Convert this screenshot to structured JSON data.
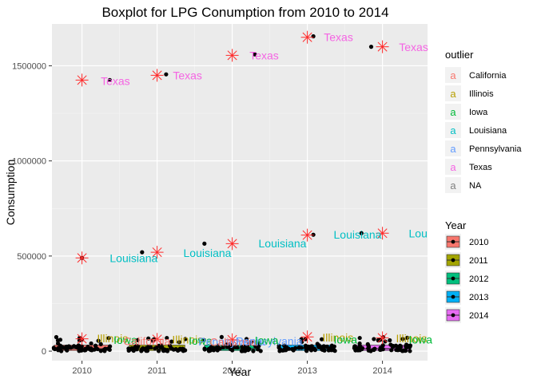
{
  "chart_data": {
    "type": "scatter",
    "title": "Boxplot for LPG Conumption from 2010 to 2014",
    "xlabel": "Year",
    "ylabel": "Consumption",
    "xlim": [
      2009.6,
      2014.6
    ],
    "ylim": [
      -50000,
      1720000
    ],
    "x_ticks": [
      2010,
      2011,
      2012,
      2013,
      2014
    ],
    "y_ticks": [
      0,
      500000,
      1000000,
      1500000
    ],
    "y_tick_labels": [
      "0",
      "500000",
      "1000000",
      "1500000"
    ],
    "grid": true,
    "outlier_legend": {
      "title": "outlier",
      "entries": [
        {
          "name": "California",
          "color": "#F8766D"
        },
        {
          "name": "Illinois",
          "color": "#B79F00"
        },
        {
          "name": "Iowa",
          "color": "#00BA38"
        },
        {
          "name": "Louisiana",
          "color": "#00BFC4"
        },
        {
          "name": "Pennsylvania",
          "color": "#619CFF"
        },
        {
          "name": "Texas",
          "color": "#F564E3"
        },
        {
          "name": "NA",
          "color": "#7F7F7F"
        }
      ]
    },
    "year_legend": {
      "title": "Year",
      "entries": [
        {
          "name": "2010",
          "color": "#F8766D"
        },
        {
          "name": "2011",
          "color": "#A3A500"
        },
        {
          "name": "2012",
          "color": "#00BF7D"
        },
        {
          "name": "2013",
          "color": "#00B0F6"
        },
        {
          "name": "2014",
          "color": "#E76BF3"
        }
      ]
    },
    "outlier_marks": [
      {
        "x": 2010,
        "y": 1425000
      },
      {
        "x": 2010,
        "y": 490000
      },
      {
        "x": 2010,
        "y": 65000
      },
      {
        "x": 2011,
        "y": 1450000
      },
      {
        "x": 2011,
        "y": 520000
      },
      {
        "x": 2011,
        "y": 62000
      },
      {
        "x": 2012,
        "y": 1555000
      },
      {
        "x": 2012,
        "y": 565000
      },
      {
        "x": 2012,
        "y": 60000
      },
      {
        "x": 2013,
        "y": 1650000
      },
      {
        "x": 2013,
        "y": 610000
      },
      {
        "x": 2013,
        "y": 75000
      },
      {
        "x": 2014,
        "y": 1600000
      },
      {
        "x": 2014,
        "y": 620000
      },
      {
        "x": 2014,
        "y": 70000
      }
    ],
    "high_points": [
      {
        "x": 2010.0,
        "y": 490000
      },
      {
        "x": 2010.37,
        "y": 1425000
      },
      {
        "x": 2010.8,
        "y": 520000
      },
      {
        "x": 2011.12,
        "y": 1455000
      },
      {
        "x": 2011.63,
        "y": 565000
      },
      {
        "x": 2012.3,
        "y": 1560000
      },
      {
        "x": 2013.08,
        "y": 612000
      },
      {
        "x": 2013.08,
        "y": 1655000
      },
      {
        "x": 2013.72,
        "y": 620000
      },
      {
        "x": 2013.85,
        "y": 1600000
      }
    ],
    "annotations": [
      {
        "text": "Texas",
        "x": 2010.25,
        "y": 1420000,
        "color": "#F564E3"
      },
      {
        "text": "Louisiana",
        "x": 2010.37,
        "y": 490000,
        "color": "#00BFC4"
      },
      {
        "text": "Texas",
        "x": 2011.21,
        "y": 1450000,
        "color": "#F564E3"
      },
      {
        "text": "Louisiana",
        "x": 2011.35,
        "y": 517000,
        "color": "#00BFC4"
      },
      {
        "text": "Texas",
        "x": 2012.23,
        "y": 1555000,
        "color": "#F564E3"
      },
      {
        "text": "Louisiana",
        "x": 2012.35,
        "y": 566000,
        "color": "#00BFC4"
      },
      {
        "text": "Texas",
        "x": 2013.22,
        "y": 1650000,
        "color": "#F564E3"
      },
      {
        "text": "Louisiana",
        "x": 2013.35,
        "y": 612000,
        "color": "#00BFC4"
      },
      {
        "text": "Texas",
        "x": 2014.22,
        "y": 1598000,
        "color": "#F564E3"
      },
      {
        "text": "Lou",
        "x": 2014.35,
        "y": 618000,
        "color": "#00BFC4"
      },
      {
        "text": "Illinois",
        "x": 2010.2,
        "y": 68000,
        "color": "#B79F00"
      },
      {
        "text": "Iowa",
        "x": 2010.42,
        "y": 60000,
        "color": "#00BA38"
      },
      {
        "text": "California",
        "x": 2010.55,
        "y": 52000,
        "color": "#F8766D"
      },
      {
        "text": "Illinois",
        "x": 2011.2,
        "y": 62000,
        "color": "#B79F00"
      },
      {
        "text": "Iowa",
        "x": 2011.42,
        "y": 55000,
        "color": "#00BA38"
      },
      {
        "text": "Pennsylvania",
        "x": 2011.55,
        "y": 50000,
        "color": "#619CFF"
      },
      {
        "text": "California",
        "x": 2011.7,
        "y": 48000,
        "color": "#F8766D"
      },
      {
        "text": "Pennsylvania",
        "x": 2012.05,
        "y": 52000,
        "color": "#619CFF"
      },
      {
        "text": "Iowa",
        "x": 2012.3,
        "y": 56000,
        "color": "#00BA38"
      },
      {
        "text": "Illinois",
        "x": 2013.2,
        "y": 72000,
        "color": "#B79F00"
      },
      {
        "text": "Iowa",
        "x": 2013.35,
        "y": 62000,
        "color": "#00BA38"
      },
      {
        "text": "Illinois",
        "x": 2014.18,
        "y": 68000,
        "color": "#B79F00"
      },
      {
        "text": "Iowa",
        "x": 2014.35,
        "y": 62000,
        "color": "#00BA38"
      }
    ]
  }
}
